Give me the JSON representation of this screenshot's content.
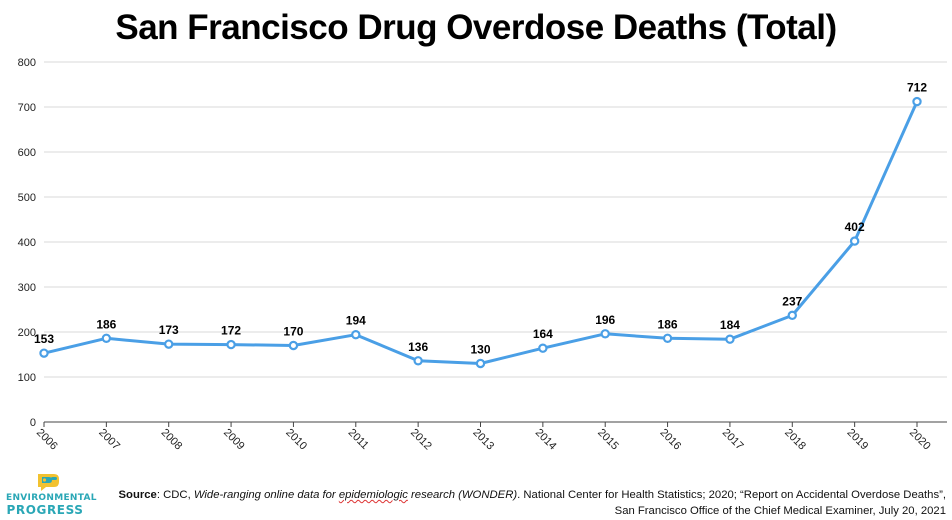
{
  "chart_data": {
    "type": "line",
    "title": "San Francisco Drug Overdose Deaths (Total)",
    "xlabel": "",
    "ylabel": "",
    "categories": [
      "2006",
      "2007",
      "2008",
      "2009",
      "2010",
      "2011",
      "2012",
      "2013",
      "2014",
      "2015",
      "2016",
      "2017",
      "2018",
      "2019",
      "2020"
    ],
    "series": [
      {
        "values": [
          153,
          186,
          173,
          172,
          170,
          194,
          136,
          130,
          164,
          196,
          186,
          184,
          237,
          402,
          712
        ]
      }
    ],
    "ylim": [
      0,
      800
    ],
    "yticks": [
      0,
      100,
      200,
      300,
      400,
      500,
      600,
      700,
      800
    ],
    "grid": true,
    "data_labels": true,
    "line_color": "#4a9fe6"
  },
  "footer": {
    "source_label": "Source",
    "source_prefix": ": CDC, ",
    "source_italic_1": "Wide-ranging online data for ",
    "source_italic_2": "epidemiologic",
    "source_italic_3": " research (WONDER)",
    "source_rest": ". National Center for Health Statistics; 2020; “Report on Accidental Overdose Deaths”, San Francisco Office of the Chief Medical Examiner, July 20, 2021"
  },
  "logo": {
    "line1": "ENVIRONMENTAL",
    "line2": "PROGRESS",
    "icon": "ep-speech-bubble-icon",
    "color_teal": "#2aa7b6",
    "color_yellow": "#f2c230"
  }
}
